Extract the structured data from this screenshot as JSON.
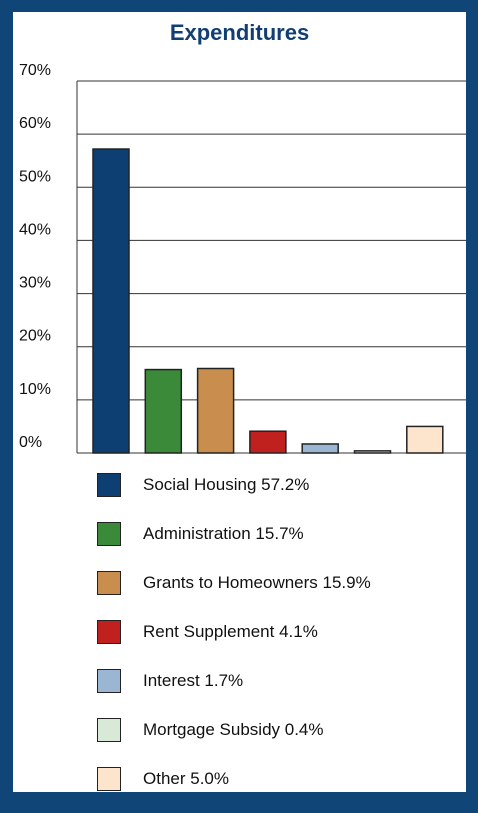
{
  "chart_data": {
    "type": "bar",
    "title": "Expenditures",
    "ylim": [
      0,
      70
    ],
    "yticks": [
      "70%",
      "60%",
      "50%",
      "40%",
      "30%",
      "20%",
      "10%",
      "0%"
    ],
    "grid": true,
    "legend_position": "bottom",
    "categories": [
      "Social Housing",
      "Administration",
      "Grants to Homeowners",
      "Rent Supplement",
      "Interest",
      "Mortgage Subsidy",
      "Other"
    ],
    "values": [
      57.2,
      15.7,
      15.9,
      4.1,
      1.7,
      0.4,
      5.0
    ],
    "colors": [
      "#0d3f73",
      "#3b8a3a",
      "#c98e4e",
      "#c0201e",
      "#9bb6d2",
      "#d8ead7",
      "#fde4cc"
    ],
    "legend": [
      {
        "label": "Social Housing 57.2%",
        "color": "#0d3f73"
      },
      {
        "label": "Administration 15.7%",
        "color": "#3b8a3a"
      },
      {
        "label": "Grants to Homeowners 15.9%",
        "color": "#c98e4e"
      },
      {
        "label": "Rent Supplement 4.1%",
        "color": "#c0201e"
      },
      {
        "label": "Interest 1.7%",
        "color": "#9bb6d2"
      },
      {
        "label": "Mortgage Subsidy 0.4%",
        "color": "#d8ead7"
      },
      {
        "label": "Other 5.0%",
        "color": "#fde4cc"
      }
    ]
  }
}
